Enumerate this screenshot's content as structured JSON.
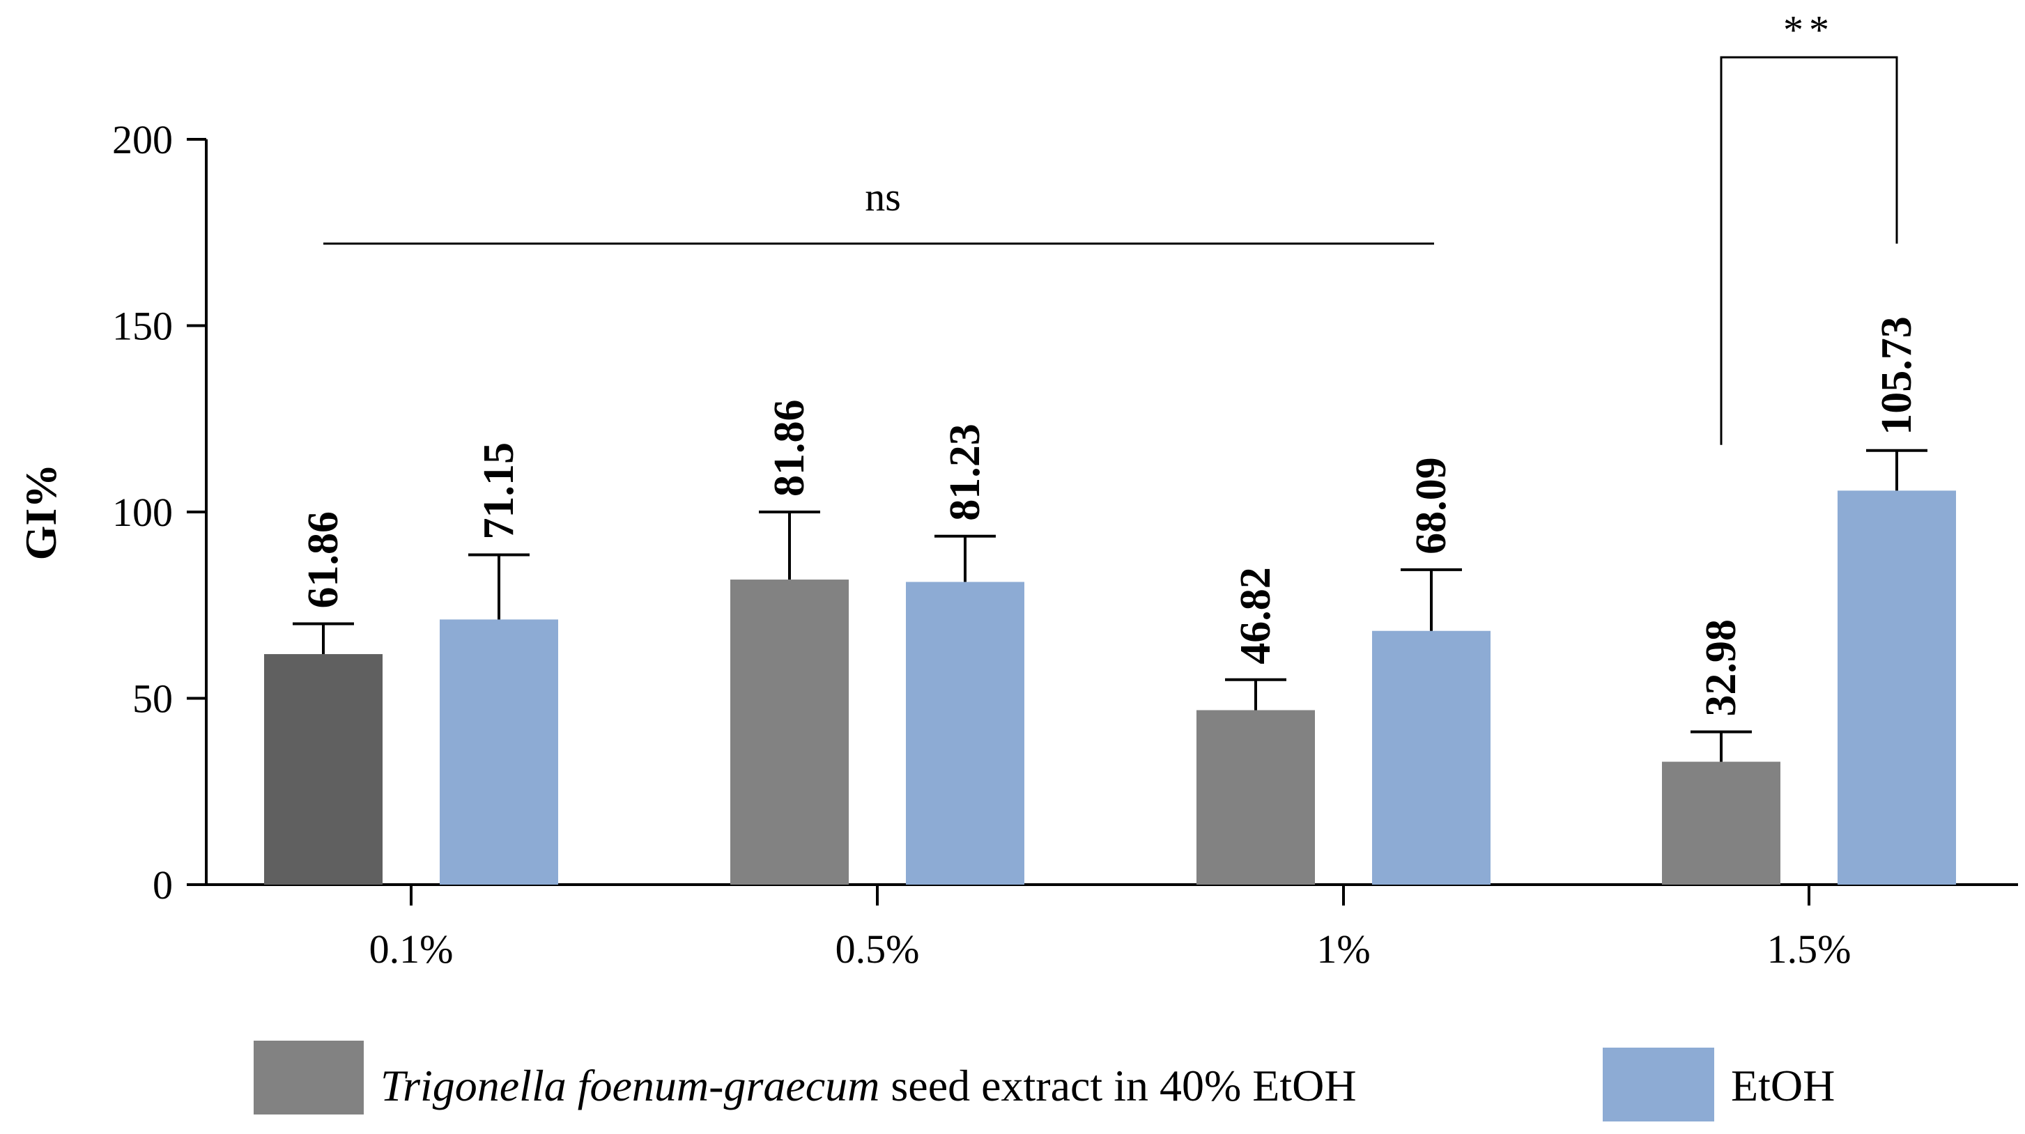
{
  "chart_data": {
    "type": "bar",
    "title": "",
    "xlabel": "",
    "ylabel": "GI%",
    "ylim": [
      0,
      200
    ],
    "yticks": [
      0,
      50,
      100,
      150,
      200
    ],
    "categories": [
      "0.1%",
      "0.5%",
      "1%",
      "1.5%"
    ],
    "series": [
      {
        "name_italic": "Trigonella foenum-graecum",
        "name_rest": " seed extract in 40% EtOH",
        "values": [
          61.86,
          81.86,
          46.82,
          32.98
        ],
        "error_upper": [
          70.0,
          100.0,
          55.0,
          41.0
        ],
        "labels": [
          "61.86",
          "81.86",
          "46.82",
          "32.98"
        ],
        "color": "#828282",
        "first_bar_color": "#606060"
      },
      {
        "name": "EtOH",
        "values": [
          71.15,
          81.23,
          68.09,
          105.73
        ],
        "error_upper": [
          88.5,
          93.5,
          84.5,
          116.5
        ],
        "labels": [
          "71.15",
          "81.23",
          "68.09",
          "105.73"
        ],
        "color": "#8dabd4"
      }
    ],
    "annotations": {
      "ns": {
        "text": "ns",
        "y": 172,
        "from_category": "0.1%",
        "to_category": "1%"
      },
      "sig": {
        "text": "**",
        "category": "1.5%",
        "top_y": 222,
        "left_end_y": 118,
        "right_end_y": 172
      }
    },
    "legend_position": "bottom",
    "grid": false
  }
}
